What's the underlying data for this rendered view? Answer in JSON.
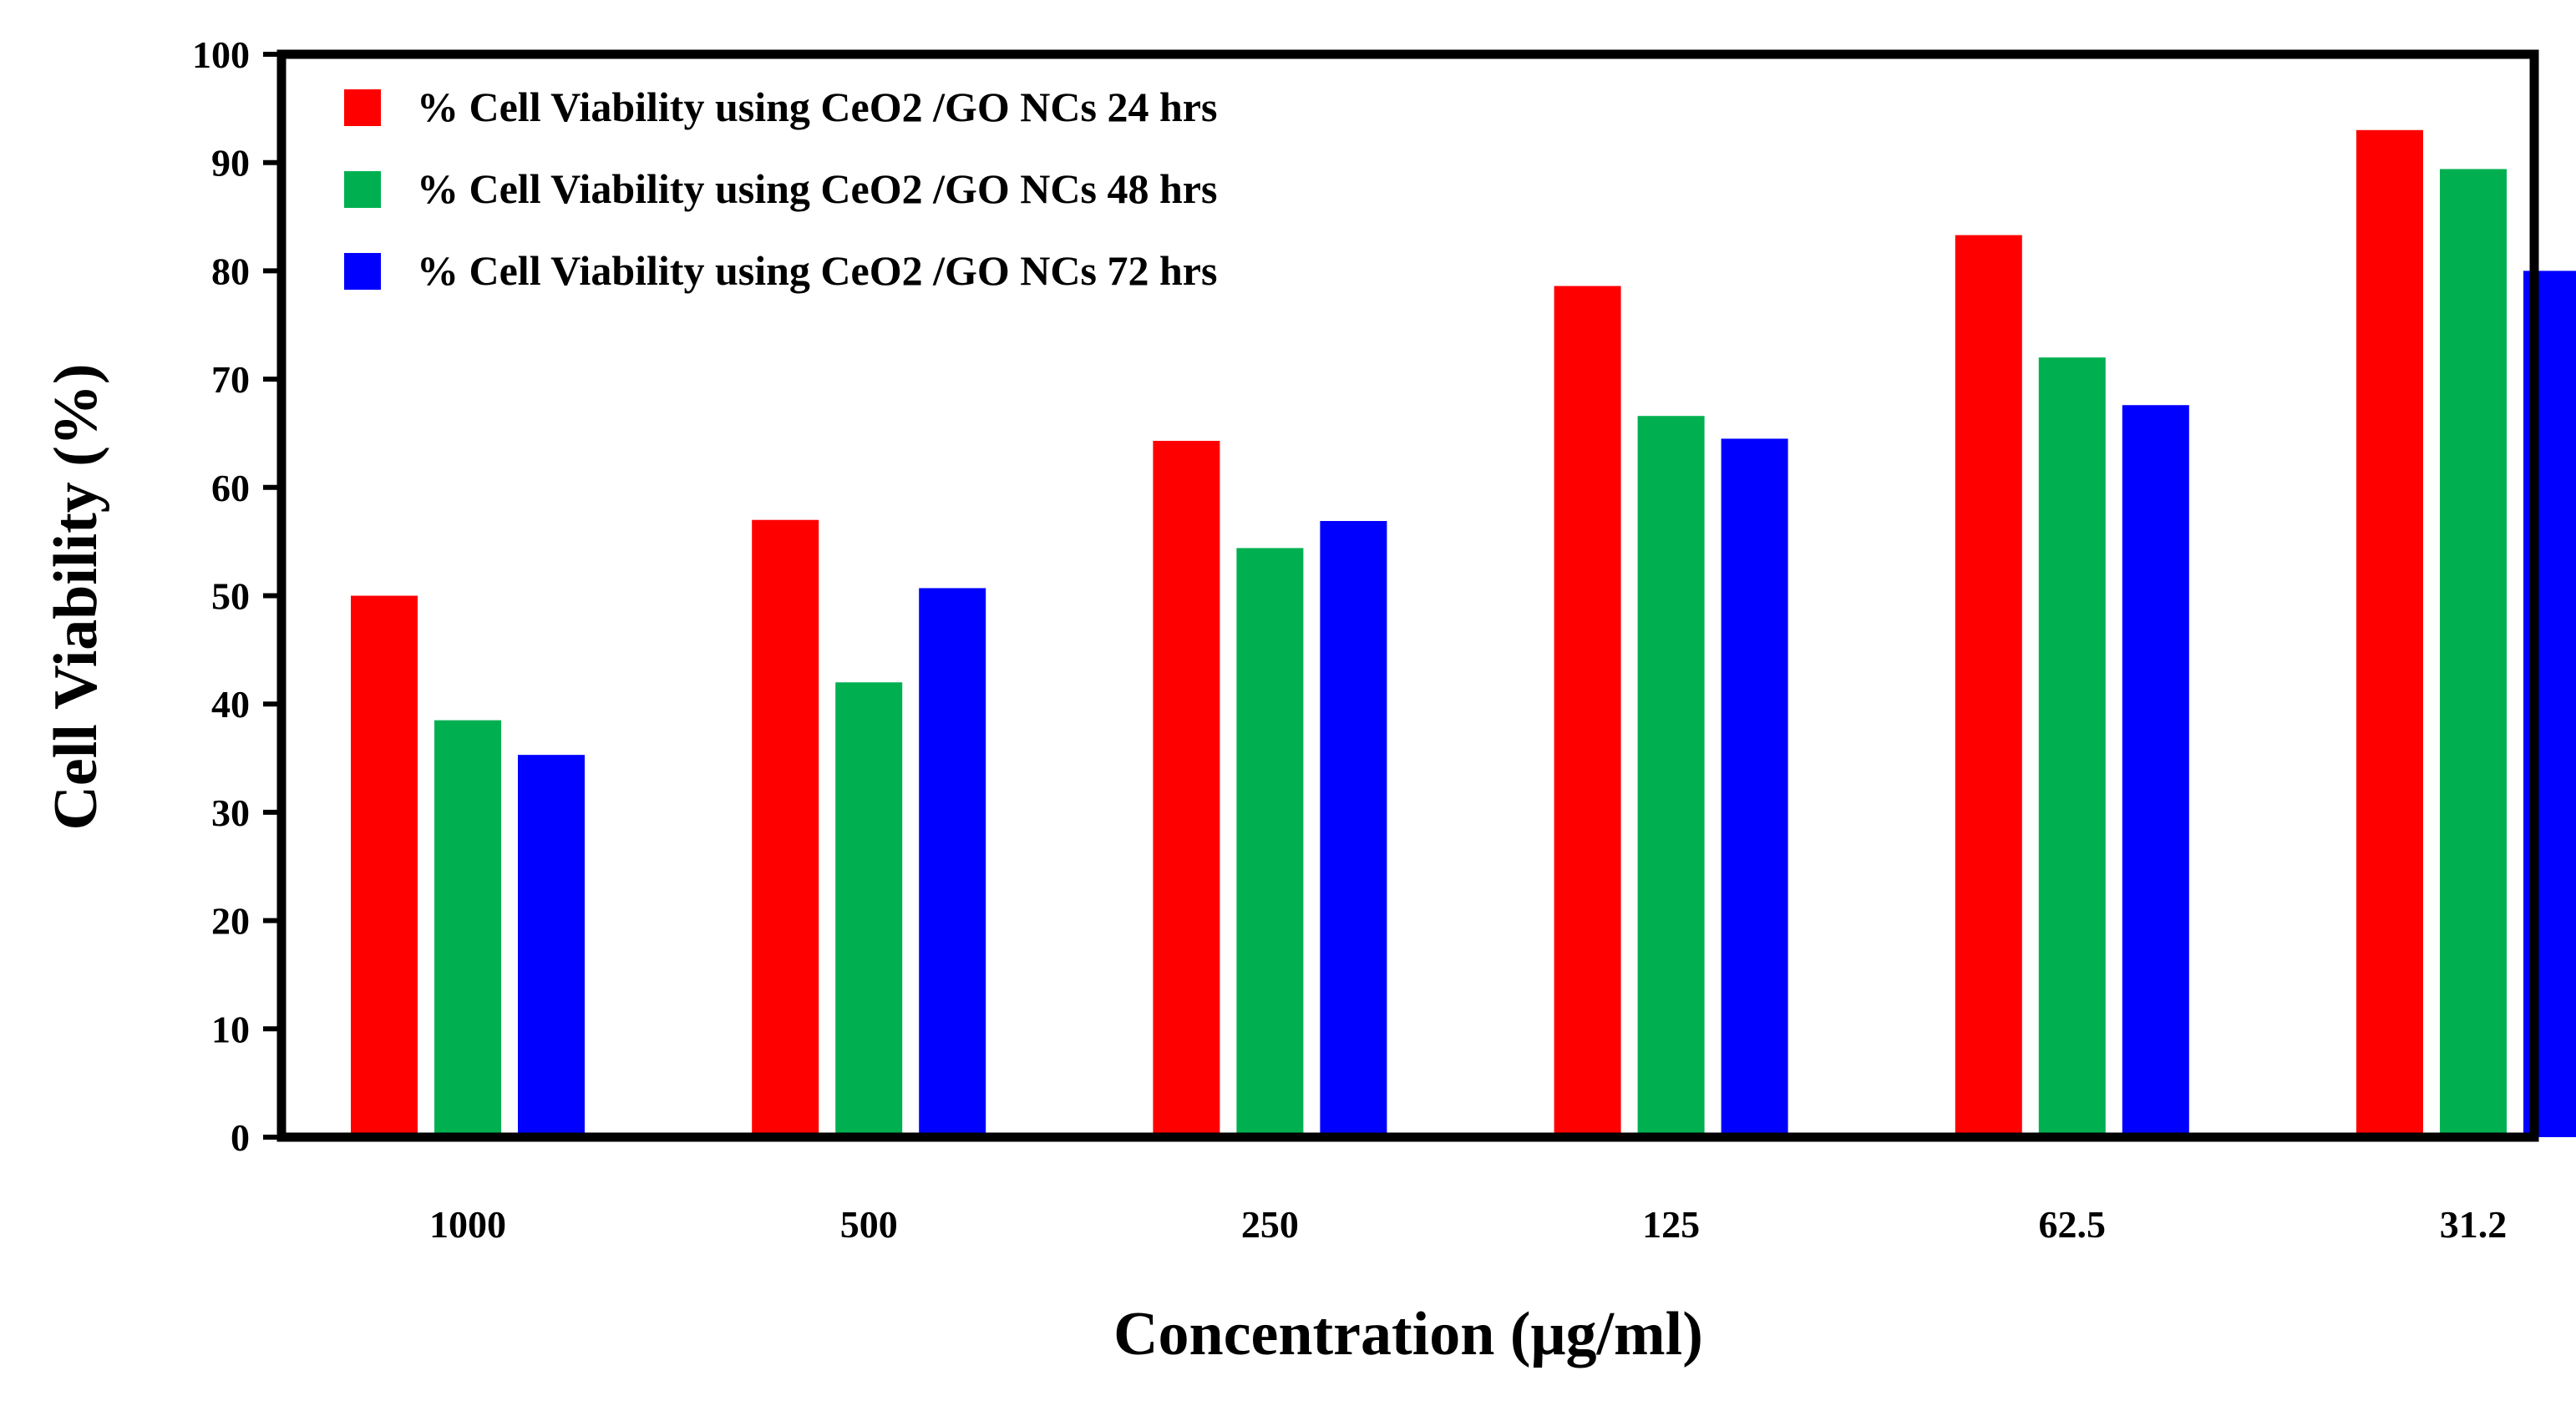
{
  "chart_data": {
    "type": "bar",
    "title": "",
    "xlabel": "Concentration (μg/ml)",
    "ylabel": "Cell Viability (%)",
    "ylim": [
      0,
      100
    ],
    "yticks": [
      0,
      10,
      20,
      30,
      40,
      50,
      60,
      70,
      80,
      90,
      100
    ],
    "categories": [
      "1000",
      "500",
      "250",
      "125",
      "62.5",
      "31.2"
    ],
    "series": [
      {
        "name": "% Cell Viability using CeO2 /GO NCs 24 hrs",
        "color": "#ff0000",
        "values": [
          50.0,
          57.0,
          64.3,
          78.6,
          83.3,
          93.0
        ]
      },
      {
        "name": "% Cell Viability using CeO2 /GO NCs 48 hrs",
        "color": "#00b050",
        "values": [
          38.5,
          42.0,
          54.4,
          66.6,
          72.0,
          89.4
        ]
      },
      {
        "name": "% Cell Viability using CeO2 /GO NCs 72 hrs",
        "color": "#0000ff",
        "values": [
          35.3,
          50.7,
          56.9,
          64.5,
          67.6,
          80.0
        ]
      }
    ],
    "legend_position": "top-left",
    "grid": false
  }
}
